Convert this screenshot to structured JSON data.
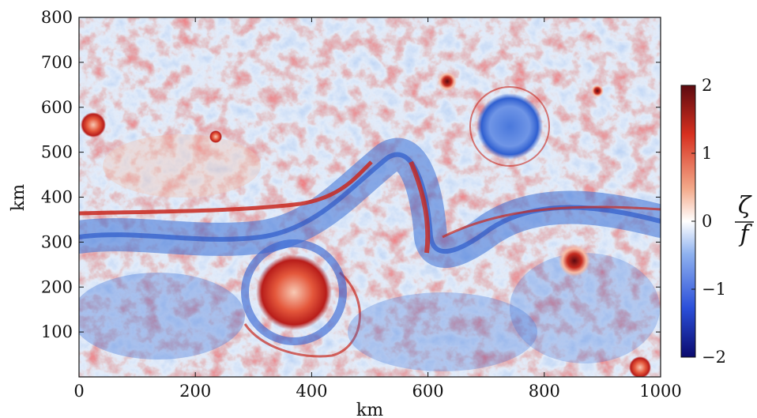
{
  "figure": {
    "x_axis": {
      "label": "km",
      "ticks": [
        "0",
        "200",
        "400",
        "600",
        "800",
        "1000"
      ],
      "tick_values": [
        0,
        200,
        400,
        600,
        800,
        1000
      ],
      "range": [
        0,
        1000
      ]
    },
    "y_axis": {
      "label": "km",
      "ticks": [
        "100",
        "200",
        "300",
        "400",
        "500",
        "600",
        "700",
        "800"
      ],
      "tick_values": [
        100,
        200,
        300,
        400,
        500,
        600,
        700,
        800
      ],
      "range": [
        0,
        800
      ]
    },
    "colorbar": {
      "numerator": "ζ",
      "denominator": "f",
      "ticks": [
        "2",
        "1",
        "0",
        "−1",
        "−2"
      ],
      "tick_values": [
        2,
        1,
        0,
        -1,
        -2
      ],
      "range": [
        -2,
        2
      ],
      "colors": [
        "#0a0a6e",
        "#2b4fd9",
        "#8fb2ef",
        "#ffffff",
        "#f3a98a",
        "#d7301f",
        "#5c0a10"
      ]
    },
    "field": {
      "background": "#eef3fb",
      "positive_color": "#d7301f",
      "negative_color": "#3b6fd6"
    }
  }
}
